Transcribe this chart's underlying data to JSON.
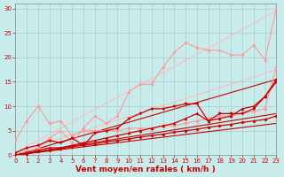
{
  "background_color": "#c8ecec",
  "grid_color": "#a0c0c0",
  "xlabel": "Vent moyen/en rafales ( km/h )",
  "xlabel_color": "#cc0000",
  "xlabel_fontsize": 6.5,
  "yticks": [
    0,
    5,
    10,
    15,
    20,
    25,
    30
  ],
  "xticks": [
    0,
    1,
    2,
    3,
    4,
    5,
    6,
    7,
    8,
    9,
    10,
    11,
    12,
    13,
    14,
    15,
    16,
    17,
    18,
    19,
    20,
    21,
    22,
    23
  ],
  "ylim": [
    0,
    31
  ],
  "xlim": [
    0,
    23
  ],
  "tick_color": "#cc0000",
  "tick_fontsize": 5.0,
  "series": [
    {
      "x": [
        0,
        1,
        2,
        3,
        4,
        5,
        6,
        7,
        8,
        9,
        10,
        11,
        12,
        13,
        14,
        15,
        16,
        17,
        18,
        19,
        20,
        21,
        22,
        23
      ],
      "y": [
        3.0,
        7.0,
        10.0,
        6.5,
        7.0,
        4.0,
        5.0,
        5.0,
        5.0,
        5.0,
        5.5,
        5.5,
        5.5,
        6.0,
        6.0,
        6.5,
        7.0,
        7.5,
        8.0,
        8.0,
        8.5,
        9.0,
        9.5,
        18.0
      ],
      "color": "#ff9999",
      "lw": 0.8,
      "marker": "D",
      "ms": 1.8
    },
    {
      "x": [
        0,
        1,
        2,
        3,
        4,
        5,
        6,
        7,
        8,
        9,
        10,
        11,
        12,
        13,
        14,
        15,
        16,
        17,
        18,
        19,
        20,
        21,
        22,
        23
      ],
      "y": [
        0.5,
        0.5,
        1.5,
        3.5,
        5.0,
        2.5,
        5.5,
        8.0,
        6.5,
        8.0,
        13.0,
        14.5,
        14.5,
        18.0,
        21.0,
        23.0,
        22.0,
        21.5,
        21.5,
        20.5,
        20.5,
        22.5,
        19.5,
        30.0
      ],
      "color": "#ff9999",
      "lw": 0.8,
      "marker": "P",
      "ms": 2.0
    },
    {
      "x": [
        0,
        23
      ],
      "y": [
        0.5,
        29.5
      ],
      "color": "#ffbbbb",
      "lw": 0.8,
      "marker": null,
      "ms": 0
    },
    {
      "x": [
        0,
        23
      ],
      "y": [
        0.5,
        17.5
      ],
      "color": "#ffbbbb",
      "lw": 0.8,
      "marker": null,
      "ms": 0
    },
    {
      "x": [
        0,
        1,
        2,
        3,
        4,
        5,
        6,
        7,
        8,
        9,
        10,
        11,
        12,
        13,
        14,
        15,
        16,
        17,
        18,
        19,
        20,
        21,
        22,
        23
      ],
      "y": [
        0.0,
        0.5,
        1.0,
        1.5,
        1.5,
        2.0,
        2.5,
        3.0,
        3.5,
        4.0,
        4.5,
        5.0,
        5.5,
        6.0,
        6.5,
        7.5,
        8.5,
        7.0,
        7.5,
        8.0,
        9.5,
        10.0,
        12.0,
        15.0
      ],
      "color": "#cc0000",
      "lw": 0.9,
      "marker": "^",
      "ms": 2.0
    },
    {
      "x": [
        0,
        1,
        2,
        3,
        4,
        5,
        6,
        7,
        8,
        9,
        10,
        11,
        12,
        13,
        14,
        15,
        16,
        17,
        18,
        19,
        20,
        21,
        22,
        23
      ],
      "y": [
        0.5,
        1.5,
        2.0,
        3.0,
        2.5,
        3.5,
        2.0,
        4.5,
        5.0,
        5.5,
        7.5,
        8.5,
        9.5,
        9.5,
        10.0,
        10.5,
        10.5,
        7.0,
        8.5,
        8.5,
        8.5,
        9.5,
        12.0,
        15.5
      ],
      "color": "#cc0000",
      "lw": 0.9,
      "marker": "v",
      "ms": 2.0
    },
    {
      "x": [
        0,
        23
      ],
      "y": [
        0.0,
        15.5
      ],
      "color": "#cc0000",
      "lw": 0.8,
      "marker": null,
      "ms": 0
    },
    {
      "x": [
        0,
        23
      ],
      "y": [
        0.0,
        8.5
      ],
      "color": "#cc0000",
      "lw": 0.8,
      "marker": null,
      "ms": 0
    },
    {
      "x": [
        0,
        23
      ],
      "y": [
        0.0,
        6.5
      ],
      "color": "#cc0000",
      "lw": 0.8,
      "marker": null,
      "ms": 0
    },
    {
      "x": [
        0,
        1,
        2,
        3,
        4,
        5,
        6,
        7,
        8,
        9,
        10,
        11,
        12,
        13,
        14,
        15,
        16,
        17,
        18,
        19,
        20,
        21,
        22,
        23
      ],
      "y": [
        0.0,
        0.3,
        0.7,
        1.0,
        1.3,
        1.7,
        2.0,
        2.3,
        2.7,
        3.0,
        3.3,
        3.7,
        4.0,
        4.3,
        4.7,
        5.0,
        5.3,
        5.7,
        6.0,
        6.3,
        6.7,
        7.0,
        7.3,
        8.0
      ],
      "color": "#cc0000",
      "lw": 0.9,
      "marker": "D",
      "ms": 1.6
    }
  ]
}
